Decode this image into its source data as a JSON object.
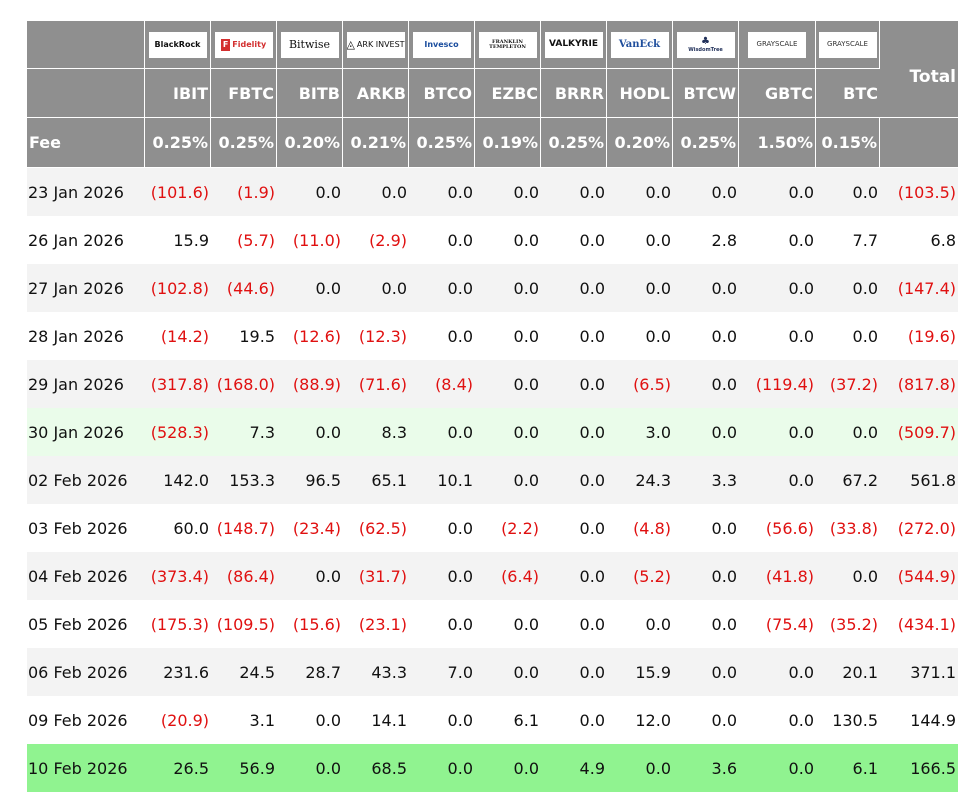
{
  "columns": [
    {
      "logo_text": "BlackRock",
      "ticker": "IBIT",
      "fee": "0.25%"
    },
    {
      "logo_text": "Fidelity",
      "ticker": "FBTC",
      "fee": "0.25%"
    },
    {
      "logo_text": "Bitwise",
      "ticker": "BITB",
      "fee": "0.20%"
    },
    {
      "logo_text": "ARK INVEST",
      "ticker": "ARKB",
      "fee": "0.21%"
    },
    {
      "logo_text": "Invesco",
      "ticker": "BTCO",
      "fee": "0.25%"
    },
    {
      "logo_text": "FRANKLIN TEMPLETON",
      "ticker": "EZBC",
      "fee": "0.19%"
    },
    {
      "logo_text": "VALKYRIE",
      "ticker": "BRRR",
      "fee": "0.25%"
    },
    {
      "logo_text": "VanEck",
      "ticker": "HODL",
      "fee": "0.20%"
    },
    {
      "logo_text": "WisdomTree",
      "ticker": "BTCW",
      "fee": "0.25%"
    },
    {
      "logo_text": "GRAYSCALE",
      "ticker": "GBTC",
      "fee": "1.50%"
    },
    {
      "logo_text": "GRAYSCALE",
      "ticker": "BTC",
      "fee": "0.15%"
    }
  ],
  "header": {
    "total_label": "Total",
    "fee_label": "Fee"
  },
  "colors": {
    "header_bg": "#8f8f8f",
    "negative": "#e01010",
    "row_alt": "#f3f3f3",
    "highlight_light": "#eafcea",
    "highlight_strong": "#90f390",
    "fidelity_red": "#d32f2f",
    "invesco_blue": "#1a4d9e",
    "vaneck_blue": "#1f4e9c",
    "wisdomtree_navy": "#22315a"
  },
  "rows": [
    {
      "date": "23 Jan 2026",
      "values": [
        "(101.6)",
        "(1.9)",
        "0.0",
        "0.0",
        "0.0",
        "0.0",
        "0.0",
        "0.0",
        "0.0",
        "0.0",
        "0.0"
      ],
      "total": "(103.5)",
      "highlight": ""
    },
    {
      "date": "26 Jan 2026",
      "values": [
        "15.9",
        "(5.7)",
        "(11.0)",
        "(2.9)",
        "0.0",
        "0.0",
        "0.0",
        "0.0",
        "2.8",
        "0.0",
        "7.7"
      ],
      "total": "6.8",
      "highlight": ""
    },
    {
      "date": "27 Jan 2026",
      "values": [
        "(102.8)",
        "(44.6)",
        "0.0",
        "0.0",
        "0.0",
        "0.0",
        "0.0",
        "0.0",
        "0.0",
        "0.0",
        "0.0"
      ],
      "total": "(147.4)",
      "highlight": ""
    },
    {
      "date": "28 Jan 2026",
      "values": [
        "(14.2)",
        "19.5",
        "(12.6)",
        "(12.3)",
        "0.0",
        "0.0",
        "0.0",
        "0.0",
        "0.0",
        "0.0",
        "0.0"
      ],
      "total": "(19.6)",
      "highlight": ""
    },
    {
      "date": "29 Jan 2026",
      "values": [
        "(317.8)",
        "(168.0)",
        "(88.9)",
        "(71.6)",
        "(8.4)",
        "0.0",
        "0.0",
        "(6.5)",
        "0.0",
        "(119.4)",
        "(37.2)"
      ],
      "total": "(817.8)",
      "highlight": ""
    },
    {
      "date": "30 Jan 2026",
      "values": [
        "(528.3)",
        "7.3",
        "0.0",
        "8.3",
        "0.0",
        "0.0",
        "0.0",
        "3.0",
        "0.0",
        "0.0",
        "0.0"
      ],
      "total": "(509.7)",
      "highlight": "light"
    },
    {
      "date": "02 Feb 2026",
      "values": [
        "142.0",
        "153.3",
        "96.5",
        "65.1",
        "10.1",
        "0.0",
        "0.0",
        "24.3",
        "3.3",
        "0.0",
        "67.2"
      ],
      "total": "561.8",
      "highlight": ""
    },
    {
      "date": "03 Feb 2026",
      "values": [
        "60.0",
        "(148.7)",
        "(23.4)",
        "(62.5)",
        "0.0",
        "(2.2)",
        "0.0",
        "(4.8)",
        "0.0",
        "(56.6)",
        "(33.8)"
      ],
      "total": "(272.0)",
      "highlight": ""
    },
    {
      "date": "04 Feb 2026",
      "values": [
        "(373.4)",
        "(86.4)",
        "0.0",
        "(31.7)",
        "0.0",
        "(6.4)",
        "0.0",
        "(5.2)",
        "0.0",
        "(41.8)",
        "0.0"
      ],
      "total": "(544.9)",
      "highlight": ""
    },
    {
      "date": "05 Feb 2026",
      "values": [
        "(175.3)",
        "(109.5)",
        "(15.6)",
        "(23.1)",
        "0.0",
        "0.0",
        "0.0",
        "0.0",
        "0.0",
        "(75.4)",
        "(35.2)"
      ],
      "total": "(434.1)",
      "highlight": ""
    },
    {
      "date": "06 Feb 2026",
      "values": [
        "231.6",
        "24.5",
        "28.7",
        "43.3",
        "7.0",
        "0.0",
        "0.0",
        "15.9",
        "0.0",
        "0.0",
        "20.1"
      ],
      "total": "371.1",
      "highlight": ""
    },
    {
      "date": "09 Feb 2026",
      "values": [
        "(20.9)",
        "3.1",
        "0.0",
        "14.1",
        "0.0",
        "6.1",
        "0.0",
        "12.0",
        "0.0",
        "0.0",
        "130.5"
      ],
      "total": "144.9",
      "highlight": ""
    },
    {
      "date": "10 Feb 2026",
      "values": [
        "26.5",
        "56.9",
        "0.0",
        "68.5",
        "0.0",
        "0.0",
        "4.9",
        "0.0",
        "3.6",
        "0.0",
        "6.1"
      ],
      "total": "166.5",
      "highlight": "strong"
    }
  ]
}
